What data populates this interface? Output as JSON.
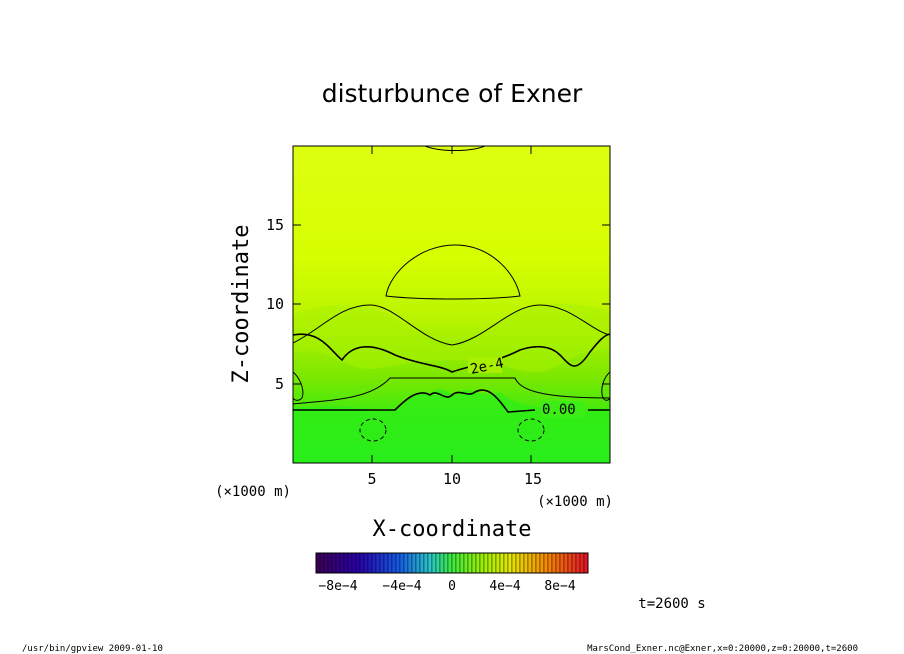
{
  "chart_data": {
    "type": "heatmap",
    "title": "disturbunce of Exner",
    "xlabel": "X-coordinate",
    "ylabel": "Z-coordinate",
    "x_unit": "(×1000 m)",
    "z_unit": "(×1000 m)",
    "xlim": [
      0,
      20
    ],
    "ylim": [
      0,
      20
    ],
    "x_ticks": [
      "5",
      "10",
      "15"
    ],
    "y_ticks": [
      "5",
      "10",
      "15"
    ],
    "contour_labels": [
      "2e-4",
      "0.00"
    ],
    "colorbar": {
      "tick_labels": [
        "−8e−4",
        "−4e−4",
        "0",
        "4e−4",
        "8e−4"
      ],
      "range": [
        -0.001,
        0.001
      ]
    },
    "time_label": "t=2600 s",
    "colors": {
      "upper_field": "#ddff00",
      "mid_field": "#b8f700",
      "lower_field": "#44ee00",
      "bottom_field": "#22ee22"
    }
  },
  "footer": {
    "left": "/usr/bin/gpview   2009-01-10",
    "right": "MarsCond_Exner.nc@Exner,x=0:20000,z=0:20000,t=2600"
  }
}
